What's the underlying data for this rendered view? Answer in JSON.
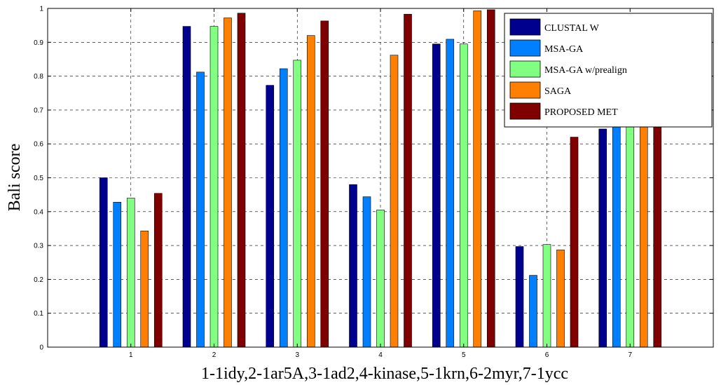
{
  "chart_data": {
    "type": "bar",
    "title": "",
    "xlabel": "1-1idy,2-1ar5A,3-1ad2,4-kinase,5-1krn,6-2myr,7-1ycc",
    "ylabel": "Bali score",
    "categories": [
      "1",
      "2",
      "3",
      "4",
      "5",
      "6",
      "7"
    ],
    "ylim": [
      0,
      1
    ],
    "yticks": [
      "0",
      "0.1",
      "0.2",
      "0.3",
      "0.4",
      "0.5",
      "0.6",
      "0.7",
      "0.8",
      "0.9",
      "1"
    ],
    "grid": true,
    "legend_position": "top-right",
    "series": [
      {
        "name": "CLUSTAL W",
        "color": "#00008f",
        "values": [
          0.5,
          0.947,
          0.773,
          0.48,
          0.895,
          0.297,
          0.644
        ]
      },
      {
        "name": "MSA-GA",
        "color": "#0080ff",
        "values": [
          0.428,
          0.812,
          0.822,
          0.444,
          0.909,
          0.212,
          0.651
        ]
      },
      {
        "name": "MSA-GA w/prealign",
        "color": "#80ff80",
        "values": [
          0.44,
          0.947,
          0.847,
          0.405,
          0.895,
          0.303,
          0.652
        ]
      },
      {
        "name": "SAGA",
        "color": "#ff8000",
        "values": [
          0.343,
          0.972,
          0.92,
          0.862,
          0.993,
          0.287,
          0.725
        ]
      },
      {
        "name": "PROPOSED MET",
        "color": "#800000",
        "values": [
          0.454,
          0.986,
          0.963,
          0.983,
          0.996,
          0.62,
          0.9
        ]
      }
    ]
  }
}
